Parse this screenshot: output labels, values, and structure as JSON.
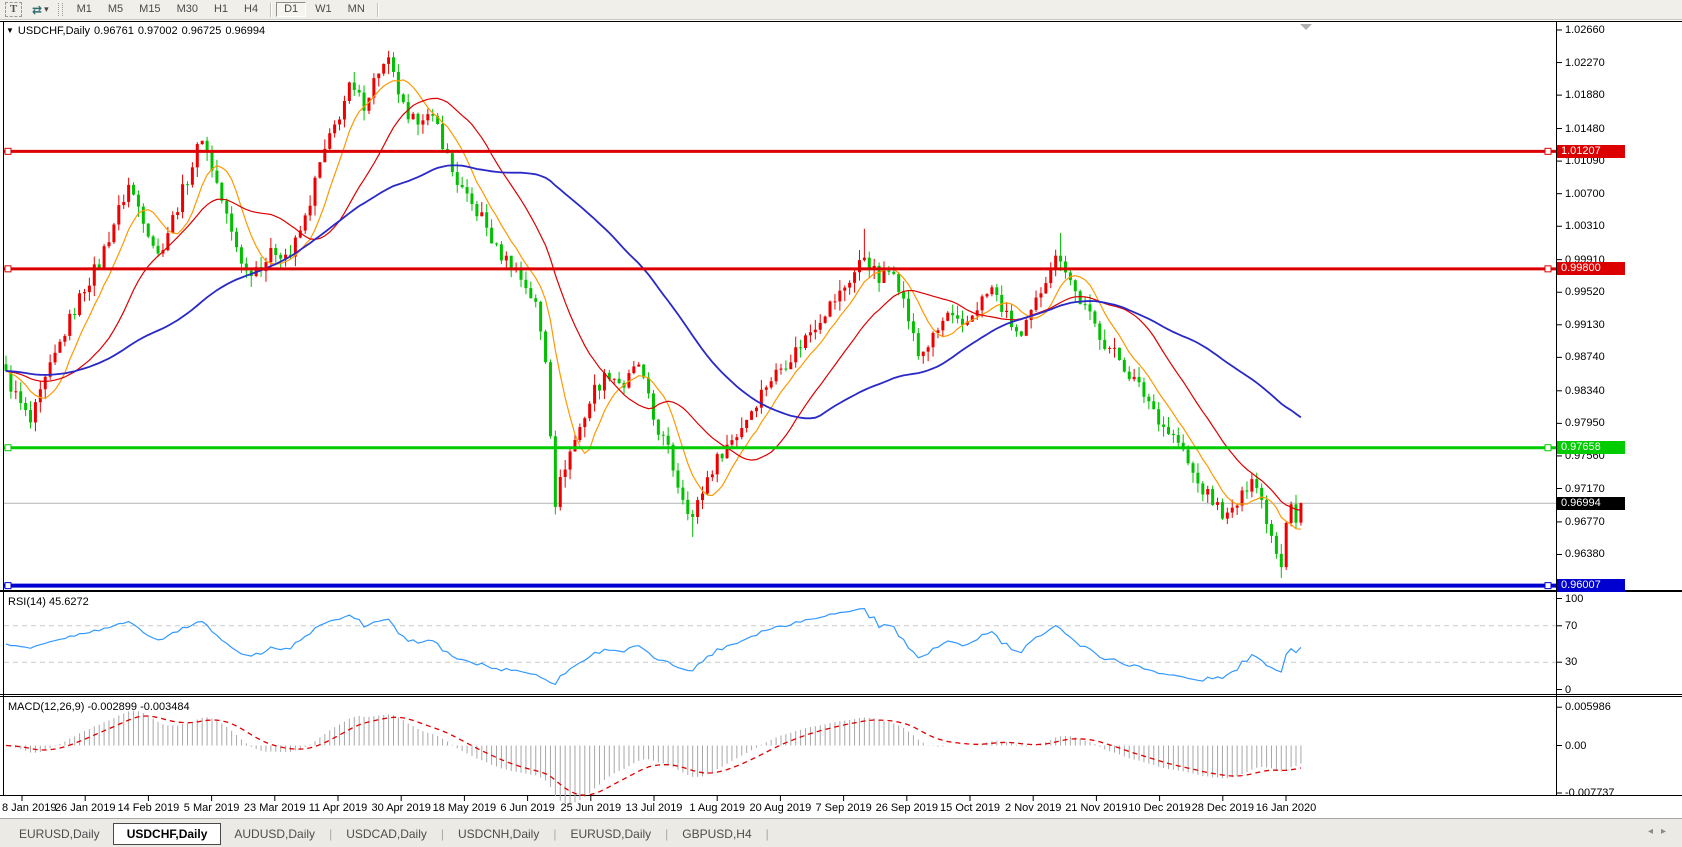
{
  "icons": {
    "text_tool": "T",
    "cycle_arrows": "⇄",
    "dropdown_caret": "▾",
    "symbol_dropdown": "▼",
    "tab_scroll_left": "◂",
    "tab_scroll_right": "▸"
  },
  "toolbar": {
    "timeframes": [
      "M1",
      "M5",
      "M15",
      "M30",
      "H1",
      "H4",
      "D1",
      "W1",
      "MN"
    ],
    "active_timeframe": "D1"
  },
  "chart": {
    "title": {
      "symbol": "USDCHF,Daily",
      "open": "0.96761",
      "high": "0.97002",
      "low": "0.96725",
      "close": "0.96994"
    },
    "price_axis": {
      "ticks": [
        {
          "label": "1.02660",
          "value": 1.0266
        },
        {
          "label": "1.02270",
          "value": 1.0227
        },
        {
          "label": "1.01880",
          "value": 1.0188
        },
        {
          "label": "1.01480",
          "value": 1.0148
        },
        {
          "label": "1.01090",
          "value": 1.0109
        },
        {
          "label": "1.00700",
          "value": 1.007
        },
        {
          "label": "1.00310",
          "value": 1.0031
        },
        {
          "label": "0.99910",
          "value": 0.9991
        },
        {
          "label": "0.99520",
          "value": 0.9952
        },
        {
          "label": "0.99130",
          "value": 0.9913
        },
        {
          "label": "0.98740",
          "value": 0.9874
        },
        {
          "label": "0.98340",
          "value": 0.9834
        },
        {
          "label": "0.97950",
          "value": 0.9795
        },
        {
          "label": "0.97560",
          "value": 0.9756
        },
        {
          "label": "0.97170",
          "value": 0.9717
        },
        {
          "label": "0.96770",
          "value": 0.9677
        },
        {
          "label": "0.96380",
          "value": 0.9638
        }
      ],
      "badges": [
        {
          "label": "1.01207",
          "value": 1.01207,
          "bg": "#dd0000",
          "fg": "#ffffff"
        },
        {
          "label": "0.99800",
          "value": 0.998,
          "bg": "#dd0000",
          "fg": "#ffffff"
        },
        {
          "label": "0.97658",
          "value": 0.97658,
          "bg": "#00cc00",
          "fg": "#ffffff"
        },
        {
          "label": "0.96994",
          "value": 0.96994,
          "bg": "#000000",
          "fg": "#ffffff"
        },
        {
          "label": "0.96007",
          "value": 0.96007,
          "bg": "#0000d0",
          "fg": "#ffffff"
        }
      ]
    }
  },
  "rsi_panel": {
    "label": "RSI(14) 45.6272",
    "ticks": [
      {
        "label": "100",
        "value": 100
      },
      {
        "label": "70",
        "value": 70
      },
      {
        "label": "30",
        "value": 30
      },
      {
        "label": "0",
        "value": 0
      }
    ],
    "levels": [
      70,
      30
    ]
  },
  "macd_panel": {
    "label": "MACD(12,26,9) -0.002899 -0.003484",
    "ticks": [
      {
        "label": "0.005986",
        "value": 0.005986
      },
      {
        "label": "0.00",
        "value": 0
      },
      {
        "label": "-0.007737",
        "value": -0.007737
      }
    ]
  },
  "date_axis": [
    "8 Jan 2019",
    "26 Jan 2019",
    "14 Feb 2019",
    "5 Mar 2019",
    "23 Mar 2019",
    "11 Apr 2019",
    "30 Apr 2019",
    "18 May 2019",
    "6 Jun 2019",
    "25 Jun 2019",
    "13 Jul 2019",
    "1 Aug 2019",
    "20 Aug 2019",
    "7 Sep 2019",
    "26 Sep 2019",
    "15 Oct 2019",
    "2 Nov 2019",
    "21 Nov 2019",
    "10 Dec 2019",
    "28 Dec 2019",
    "16 Jan 2020"
  ],
  "tabs": {
    "items": [
      "EURUSD,Daily",
      "USDCHF,Daily",
      "AUDUSD,Daily",
      "USDCAD,Daily",
      "USDCNH,Daily",
      "EURUSD,Daily",
      "GBPUSD,H4"
    ],
    "active_index": 1
  },
  "chart_data": {
    "type": "candlestick",
    "symbol": "USDCHF",
    "period": "Daily",
    "x_range": [
      "8 Jan 2019",
      "16 Jan 2020"
    ],
    "y_range": [
      0.9595,
      1.028
    ],
    "bars_estimated": 265,
    "last_bar_ohlc": {
      "open": 0.96761,
      "high": 0.97002,
      "low": 0.96725,
      "close": 0.96994
    },
    "up_color": "#ee0000",
    "down_color": "#00c000",
    "close_path_anchors": [
      [
        0,
        0.9852
      ],
      [
        2,
        0.9828
      ],
      [
        5,
        0.9795
      ],
      [
        8,
        0.9845
      ],
      [
        12,
        0.9905
      ],
      [
        16,
        0.9958
      ],
      [
        19,
        0.9987
      ],
      [
        22,
        1.0035
      ],
      [
        25,
        1.008
      ],
      [
        28,
        1.0042
      ],
      [
        31,
        0.9996
      ],
      [
        34,
        1.004
      ],
      [
        38,
        1.0105
      ],
      [
        40,
        1.014
      ],
      [
        43,
        1.0082
      ],
      [
        46,
        1.0022
      ],
      [
        49,
        0.9976
      ],
      [
        52,
        0.9986
      ],
      [
        55,
        1.0002
      ],
      [
        58,
        0.9996
      ],
      [
        61,
        1.004
      ],
      [
        64,
        1.0105
      ],
      [
        67,
        1.015
      ],
      [
        70,
        1.0196
      ],
      [
        73,
        1.0178
      ],
      [
        76,
        1.0218
      ],
      [
        78,
        1.0226
      ],
      [
        80,
        1.0192
      ],
      [
        82,
        1.0152
      ],
      [
        85,
        1.0166
      ],
      [
        88,
        1.015
      ],
      [
        91,
        1.0096
      ],
      [
        94,
        1.0062
      ],
      [
        97,
        1.0042
      ],
      [
        100,
        1.0002
      ],
      [
        103,
        0.9986
      ],
      [
        106,
        0.996
      ],
      [
        108,
        0.9936
      ],
      [
        110,
        0.9872
      ],
      [
        112,
        0.9702
      ],
      [
        114,
        0.9746
      ],
      [
        117,
        0.979
      ],
      [
        120,
        0.9836
      ],
      [
        123,
        0.9856
      ],
      [
        126,
        0.984
      ],
      [
        129,
        0.9866
      ],
      [
        132,
        0.98
      ],
      [
        135,
        0.9762
      ],
      [
        137,
        0.9722
      ],
      [
        140,
        0.9682
      ],
      [
        143,
        0.973
      ],
      [
        146,
        0.9762
      ],
      [
        149,
        0.9782
      ],
      [
        152,
        0.9812
      ],
      [
        155,
        0.9842
      ],
      [
        158,
        0.9862
      ],
      [
        161,
        0.9882
      ],
      [
        164,
        0.9906
      ],
      [
        167,
        0.993
      ],
      [
        170,
        0.995
      ],
      [
        173,
        0.9976
      ],
      [
        175,
        0.9996
      ],
      [
        178,
        0.9966
      ],
      [
        181,
        0.9982
      ],
      [
        184,
        0.992
      ],
      [
        186,
        0.9876
      ],
      [
        189,
        0.9896
      ],
      [
        192,
        0.9926
      ],
      [
        195,
        0.9906
      ],
      [
        198,
        0.9936
      ],
      [
        201,
        0.9956
      ],
      [
        204,
        0.9922
      ],
      [
        207,
        0.9896
      ],
      [
        210,
        0.994
      ],
      [
        213,
        0.9986
      ],
      [
        215,
        0.9996
      ],
      [
        218,
        0.9952
      ],
      [
        221,
        0.9922
      ],
      [
        224,
        0.9892
      ],
      [
        227,
        0.9872
      ],
      [
        230,
        0.9846
      ],
      [
        233,
        0.9822
      ],
      [
        236,
        0.9792
      ],
      [
        239,
        0.9772
      ],
      [
        241,
        0.9746
      ],
      [
        243,
        0.9722
      ],
      [
        246,
        0.9702
      ],
      [
        249,
        0.9682
      ],
      [
        252,
        0.9706
      ],
      [
        254,
        0.9736
      ],
      [
        256,
        0.9702
      ],
      [
        258,
        0.9662
      ],
      [
        260,
        0.9628
      ],
      [
        261,
        0.9682
      ],
      [
        262,
        0.9702
      ],
      [
        263,
        0.96761
      ],
      [
        264,
        0.96994
      ]
    ],
    "extra_wicks": [
      {
        "i": 78,
        "high": 1.0241
      },
      {
        "i": 140,
        "low": 0.9659
      },
      {
        "i": 175,
        "high": 1.0028
      },
      {
        "i": 215,
        "high": 1.0023
      },
      {
        "i": 260,
        "low": 0.961
      }
    ],
    "horizontal_lines": [
      {
        "price": 1.01207,
        "color": "#dd0000",
        "width": 3
      },
      {
        "price": 0.998,
        "color": "#dd0000",
        "width": 3
      },
      {
        "price": 0.97658,
        "color": "#00cc00",
        "width": 3
      },
      {
        "price": 0.96007,
        "color": "#0000d0",
        "width": 4
      }
    ],
    "current_price": 0.96994,
    "moving_averages": [
      {
        "period": 8,
        "color": "#ff9900"
      },
      {
        "period": 21,
        "color": "#dd0000"
      },
      {
        "period": 55,
        "color": "#2929c8"
      }
    ],
    "indicators": [
      {
        "name": "RSI",
        "period": 14,
        "value": 45.6272,
        "levels": [
          70,
          30
        ],
        "range": [
          0,
          100
        ],
        "color": "#3399ff"
      },
      {
        "name": "MACD",
        "params": [
          12,
          26,
          9
        ],
        "macd": -0.002899,
        "signal": -0.003484,
        "range": [
          -0.007737,
          0.005986
        ],
        "histogram_color": "#a8a8a8",
        "signal_color": "#e00000"
      }
    ]
  }
}
